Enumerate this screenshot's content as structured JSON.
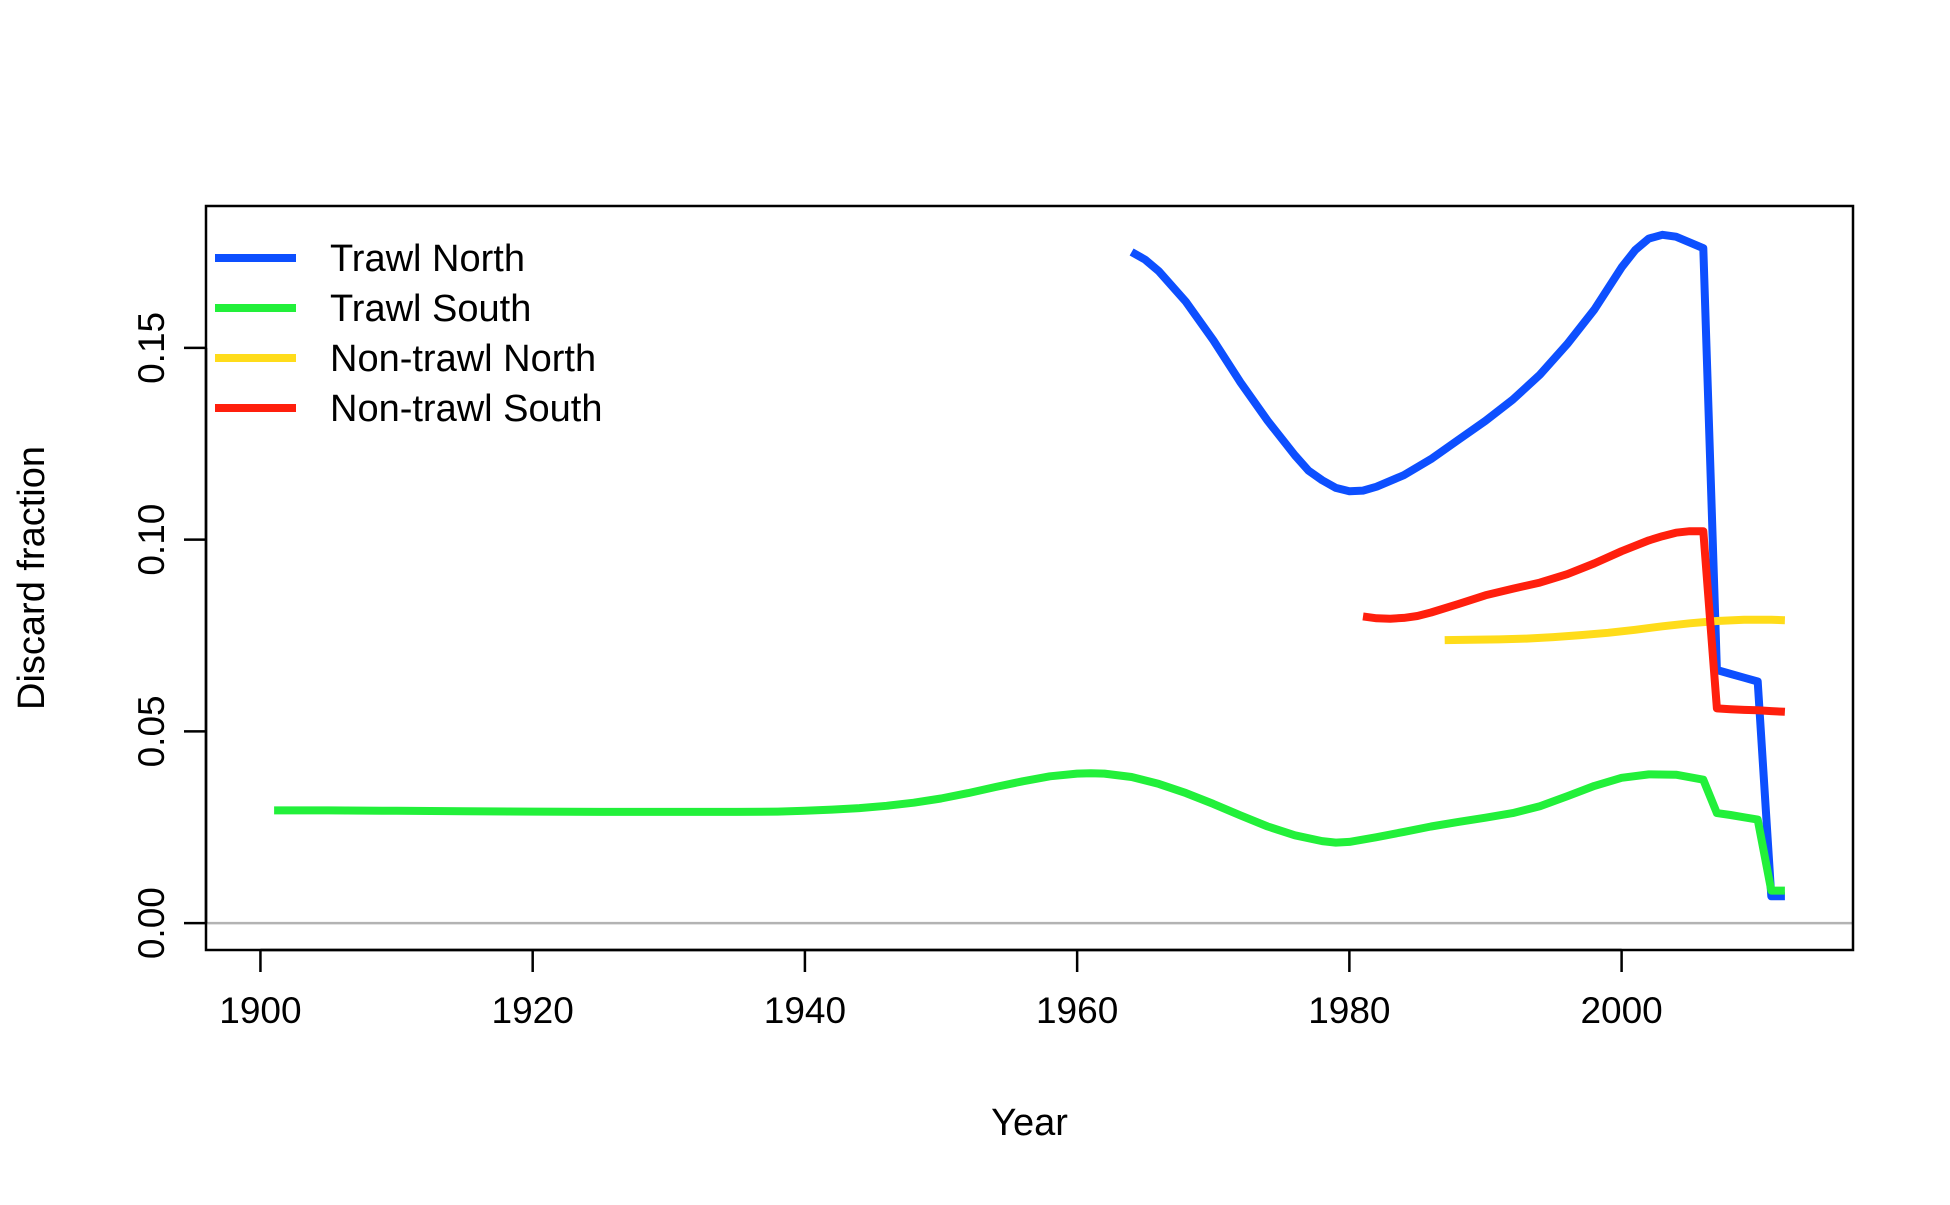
{
  "chart_data": {
    "type": "line",
    "title": "",
    "xlabel": "Year",
    "ylabel": "Discard fraction",
    "xlim": [
      1896,
      2017
    ],
    "ylim": [
      -0.007,
      0.187
    ],
    "x_ticks": [
      1900,
      1920,
      1940,
      1960,
      1980,
      2000
    ],
    "x_tick_labels": [
      "1900",
      "1920",
      "1940",
      "1960",
      "1980",
      "2000"
    ],
    "y_ticks": [
      0.0,
      0.05,
      0.1,
      0.15
    ],
    "y_tick_labels": [
      "0.00",
      "0.05",
      "0.10",
      "0.15"
    ],
    "reference_line": {
      "y": 0.0,
      "color": "#b3b3b3"
    },
    "grid": false,
    "legend_position": "top-left",
    "series": [
      {
        "name": "Trawl North",
        "color": "#0d4fff",
        "x": [
          1964,
          1965,
          1966,
          1968,
          1970,
          1972,
          1974,
          1976,
          1977,
          1978,
          1979,
          1980,
          1981,
          1982,
          1984,
          1986,
          1988,
          1990,
          1992,
          1994,
          1996,
          1998,
          2000,
          2001,
          2002,
          2003,
          2004,
          2005,
          2006,
          2007,
          2008,
          2009,
          2010,
          2011,
          2012
        ],
        "y": [
          0.175,
          0.173,
          0.17,
          0.162,
          0.152,
          0.141,
          0.131,
          0.122,
          0.118,
          0.1155,
          0.1135,
          0.1126,
          0.1128,
          0.1138,
          0.1168,
          0.121,
          0.126,
          0.131,
          0.1365,
          0.143,
          0.151,
          0.16,
          0.171,
          0.1755,
          0.1785,
          0.1795,
          0.179,
          0.1775,
          0.176,
          0.066,
          0.065,
          0.064,
          0.063,
          0.007,
          0.007
        ]
      },
      {
        "name": "Trawl South",
        "color": "#22f03a",
        "x": [
          1901,
          1905,
          1910,
          1915,
          1920,
          1925,
          1930,
          1935,
          1938,
          1940,
          1942,
          1944,
          1946,
          1948,
          1950,
          1952,
          1954,
          1956,
          1958,
          1960,
          1961,
          1962,
          1964,
          1966,
          1968,
          1970,
          1972,
          1974,
          1976,
          1978,
          1979,
          1980,
          1982,
          1984,
          1986,
          1988,
          1990,
          1992,
          1994,
          1996,
          1998,
          2000,
          2002,
          2004,
          2006,
          2007,
          2008,
          2009,
          2010,
          2011,
          2012
        ],
        "y": [
          0.0294,
          0.0294,
          0.0293,
          0.0292,
          0.0291,
          0.029,
          0.029,
          0.029,
          0.0291,
          0.0293,
          0.0296,
          0.03,
          0.0306,
          0.0314,
          0.0325,
          0.0339,
          0.0355,
          0.037,
          0.0383,
          0.039,
          0.0391,
          0.039,
          0.0381,
          0.0363,
          0.0339,
          0.0311,
          0.0281,
          0.0252,
          0.0229,
          0.0214,
          0.021,
          0.0212,
          0.0224,
          0.0238,
          0.0252,
          0.0264,
          0.0275,
          0.0287,
          0.0305,
          0.0331,
          0.0358,
          0.0379,
          0.0388,
          0.0387,
          0.0374,
          0.0287,
          0.0282,
          0.0276,
          0.027,
          0.0085,
          0.0085
        ]
      },
      {
        "name": "Non-trawl North",
        "color": "#ffdc1a",
        "x": [
          1987,
          1989,
          1991,
          1993,
          1995,
          1997,
          1999,
          2001,
          2003,
          2005,
          2007,
          2009,
          2011,
          2012
        ],
        "y": [
          0.0738,
          0.0739,
          0.074,
          0.0742,
          0.0746,
          0.0751,
          0.0757,
          0.0765,
          0.0774,
          0.0782,
          0.0788,
          0.0791,
          0.0791,
          0.079
        ]
      },
      {
        "name": "Non-trawl South",
        "color": "#ff1f0d",
        "x": [
          1981,
          1982,
          1983,
          1984,
          1985,
          1986,
          1988,
          1990,
          1992,
          1994,
          1996,
          1998,
          2000,
          2002,
          2003,
          2004,
          2005,
          2006,
          2007,
          2008,
          2009,
          2010,
          2011,
          2012
        ],
        "y": [
          0.08,
          0.0795,
          0.0794,
          0.0796,
          0.0801,
          0.081,
          0.0832,
          0.0855,
          0.0872,
          0.0888,
          0.091,
          0.0938,
          0.097,
          0.0998,
          0.1009,
          0.1018,
          0.1022,
          0.1022,
          0.056,
          0.0558,
          0.0556,
          0.0555,
          0.0553,
          0.0551
        ]
      }
    ]
  }
}
